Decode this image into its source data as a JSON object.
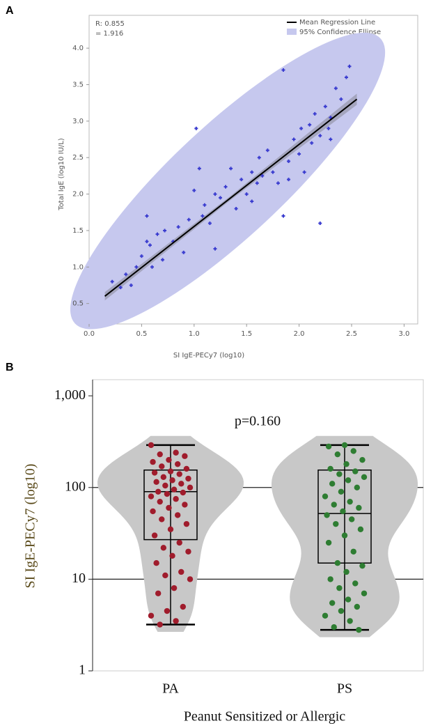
{
  "chart_data": [
    {
      "type": "scatter",
      "panel_label": "A",
      "annotations": [
        "R: 0.855",
        "= 1.916"
      ],
      "legend": [
        "Mean Regression Line",
        "95% Confidence Ellipse"
      ],
      "x_label": "SI IgE-PECy7 (log10)",
      "y_label": "Total IgE (log10 IU/L)",
      "color": "#3a3ccf",
      "ellipse_color": "#c6c8ee",
      "x": [
        0.22,
        0.3,
        0.35,
        0.4,
        0.45,
        0.5,
        0.55,
        0.58,
        0.6,
        0.65,
        0.7,
        0.72,
        0.8,
        0.85,
        0.9,
        0.95,
        1.0,
        1.02,
        1.05,
        1.08,
        1.1,
        1.15,
        1.2,
        1.2,
        1.25,
        1.3,
        1.35,
        1.4,
        1.45,
        1.5,
        1.55,
        1.6,
        1.62,
        1.65,
        1.7,
        1.75,
        1.8,
        1.85,
        1.85,
        1.9,
        1.95,
        2.0,
        2.02,
        2.05,
        2.1,
        2.12,
        2.15,
        2.2,
        2.2,
        2.25,
        2.28,
        2.3,
        2.35,
        2.4,
        2.45,
        2.48,
        0.55,
        1.9,
        2.3,
        1.55
      ],
      "y": [
        0.8,
        0.72,
        0.9,
        0.75,
        1.0,
        1.15,
        1.7,
        1.3,
        1.0,
        1.45,
        1.1,
        1.5,
        1.35,
        1.55,
        1.2,
        1.65,
        2.05,
        2.9,
        2.35,
        1.7,
        1.85,
        1.6,
        1.25,
        2.0,
        1.95,
        2.1,
        2.35,
        1.8,
        2.2,
        2.0,
        2.3,
        2.15,
        2.5,
        2.25,
        2.6,
        2.3,
        2.15,
        3.7,
        1.7,
        2.45,
        2.75,
        2.55,
        2.9,
        2.3,
        2.95,
        2.7,
        3.1,
        1.6,
        2.8,
        3.2,
        2.9,
        3.05,
        3.45,
        3.3,
        3.6,
        3.75,
        1.35,
        2.2,
        2.75,
        1.9
      ],
      "regression_line": {
        "x": [
          0.15,
          2.55
        ],
        "y": [
          0.6,
          3.3
        ]
      },
      "xlim": [
        0,
        3.13
      ],
      "ylim": [
        0.22,
        4.45
      ],
      "xticks": [
        {
          "value": 0,
          "label": "0.0"
        },
        0.5,
        {
          "value": 1,
          "label": "1.0"
        },
        1.5,
        {
          "value": 2,
          "label": "2.0"
        },
        2.5,
        {
          "value": 3,
          "label": "3.0"
        }
      ],
      "yticks": [
        0.5,
        {
          "value": 1,
          "label": "1.0"
        },
        1.5,
        {
          "value": 2,
          "label": "2.0"
        },
        2.5,
        {
          "value": 3,
          "label": "3.0"
        },
        3.5,
        {
          "value": 4,
          "label": "4.0"
        }
      ]
    },
    {
      "type": "violin-box",
      "panel_label": "B",
      "title": "p=0.160",
      "x_label": "Peanut Sensitized or Allergic",
      "y_label": "SI IgE-PECy7 (log10)",
      "log_scale": true,
      "grid": true,
      "ylim": [
        1,
        1500
      ],
      "yticks": [
        1,
        10,
        100,
        {
          "value": 1000,
          "label": "1,000"
        }
      ],
      "groups": [
        {
          "name": "PA",
          "color": "#a01c2c",
          "whisker_low": 3.2,
          "q1": 27,
          "median": 90,
          "q3": 155,
          "whisker_high": 290,
          "points": [
            290,
            240,
            230,
            220,
            200,
            190,
            180,
            170,
            160,
            150,
            145,
            140,
            130,
            125,
            120,
            115,
            110,
            105,
            100,
            95,
            90,
            88,
            85,
            80,
            75,
            70,
            65,
            60,
            55,
            50,
            45,
            40,
            35,
            30,
            25,
            22,
            20,
            18,
            15,
            12,
            11,
            10,
            8,
            7,
            5,
            4.5,
            4,
            3.5,
            3.2
          ]
        },
        {
          "name": "PS",
          "color": "#2e7d32",
          "whisker_low": 2.8,
          "q1": 15,
          "median": 52,
          "q3": 155,
          "whisker_high": 290,
          "points": [
            290,
            280,
            250,
            230,
            200,
            180,
            160,
            150,
            140,
            130,
            120,
            110,
            100,
            90,
            80,
            70,
            65,
            60,
            55,
            50,
            45,
            40,
            35,
            30,
            25,
            20,
            15,
            14,
            12,
            10,
            9,
            8,
            7,
            6,
            5.5,
            5,
            4.5,
            4,
            3.5,
            3,
            2.8
          ]
        }
      ]
    }
  ]
}
